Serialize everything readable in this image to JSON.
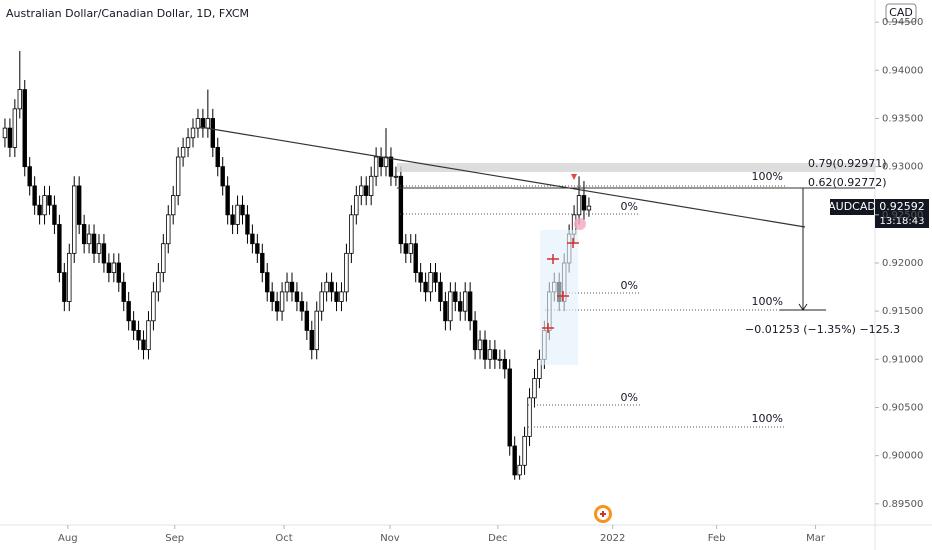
{
  "chart_data": {
    "type": "candlestick",
    "title": "Australian Dollar/Canadian Dollar, 1D, FXCM",
    "currency": "CAD",
    "symbol": "AUDCAD",
    "last_price_label": "0.92592",
    "countdown": "13:18:43",
    "up_color": "#ffffff",
    "down_color": "#000000",
    "xlim": [
      -1,
      175
    ],
    "xticks": [
      {
        "value": 12.7,
        "label": "Aug"
      },
      {
        "value": 34.3,
        "label": "Sep"
      },
      {
        "value": 56.4,
        "label": "Oct"
      },
      {
        "value": 77.8,
        "label": "Nov"
      },
      {
        "value": 99.6,
        "label": "Dec"
      },
      {
        "value": 122.8,
        "label": "2022"
      },
      {
        "value": 143.8,
        "label": "Feb"
      },
      {
        "value": 163.8,
        "label": "Mar"
      }
    ],
    "ylim": [
      0.8928,
      0.9473
    ],
    "yticks": [
      {
        "value": 0.895,
        "label": "0.89500"
      },
      {
        "value": 0.9,
        "label": "0.90000"
      },
      {
        "value": 0.905,
        "label": "0.90500"
      },
      {
        "value": 0.91,
        "label": "0.91000"
      },
      {
        "value": 0.915,
        "label": "0.91500"
      },
      {
        "value": 0.92,
        "label": "0.92000"
      },
      {
        "value": 0.925,
        "label": "0.92500"
      },
      {
        "value": 0.93,
        "label": "0.93000"
      },
      {
        "value": 0.935,
        "label": "0.93500"
      },
      {
        "value": 0.94,
        "label": "0.94000"
      },
      {
        "value": 0.945,
        "label": "0.94500"
      }
    ],
    "annotations": [
      "0.79(0.92971)",
      "0.62(0.92772)",
      "100%",
      "0%",
      "0%",
      "100%",
      "0%",
      "100%",
      "−0.01253 (−1.35%) −125.3"
    ],
    "open": [
      0.933,
      0.934,
      0.932,
      0.936,
      0.938,
      0.93,
      0.928,
      0.926,
      0.925,
      0.927,
      0.926,
      0.924,
      0.919,
      0.916,
      0.921,
      0.928,
      0.924,
      0.922,
      0.923,
      0.921,
      0.922,
      0.92,
      0.919,
      0.92,
      0.918,
      0.916,
      0.914,
      0.913,
      0.912,
      0.911,
      0.914,
      0.917,
      0.919,
      0.922,
      0.925,
      0.927,
      0.931,
      0.932,
      0.933,
      0.934,
      0.935,
      0.934,
      0.935,
      0.932,
      0.93,
      0.928,
      0.925,
      0.924,
      0.926,
      0.925,
      0.923,
      0.922,
      0.921,
      0.919,
      0.917,
      0.916,
      0.915,
      0.917,
      0.918,
      0.917,
      0.916,
      0.915,
      0.913,
      0.911,
      0.915,
      0.917,
      0.918,
      0.917,
      0.916,
      0.917,
      0.921,
      0.925,
      0.927,
      0.928,
      0.927,
      0.929,
      0.931,
      0.93,
      0.931,
      0.929,
      0.929,
      0.922,
      0.921,
      0.922,
      0.919,
      0.918,
      0.917,
      0.919,
      0.918,
      0.916,
      0.914,
      0.917,
      0.916,
      0.915,
      0.917,
      0.914,
      0.911,
      0.912,
      0.91,
      0.911,
      0.91,
      0.91,
      0.909,
      0.901,
      0.898,
      0.899,
      0.902,
      0.906,
      0.908,
      0.91,
      0.913,
      0.917,
      0.918,
      0.916,
      0.92,
      0.923,
      0.925,
      0.927,
      0.9255
    ],
    "high": [
      0.935,
      0.935,
      0.937,
      0.942,
      0.939,
      0.931,
      0.929,
      0.927,
      0.928,
      0.928,
      0.927,
      0.925,
      0.92,
      0.922,
      0.929,
      0.929,
      0.925,
      0.924,
      0.924,
      0.923,
      0.923,
      0.921,
      0.921,
      0.921,
      0.919,
      0.917,
      0.915,
      0.914,
      0.913,
      0.915,
      0.918,
      0.92,
      0.923,
      0.926,
      0.928,
      0.932,
      0.933,
      0.934,
      0.935,
      0.936,
      0.936,
      0.938,
      0.936,
      0.933,
      0.931,
      0.929,
      0.926,
      0.927,
      0.927,
      0.926,
      0.924,
      0.923,
      0.922,
      0.92,
      0.918,
      0.917,
      0.918,
      0.919,
      0.919,
      0.918,
      0.917,
      0.916,
      0.914,
      0.916,
      0.918,
      0.919,
      0.919,
      0.918,
      0.918,
      0.922,
      0.926,
      0.928,
      0.929,
      0.929,
      0.93,
      0.932,
      0.932,
      0.934,
      0.932,
      0.93,
      0.93,
      0.923,
      0.923,
      0.923,
      0.92,
      0.919,
      0.92,
      0.92,
      0.919,
      0.917,
      0.918,
      0.918,
      0.917,
      0.918,
      0.918,
      0.915,
      0.913,
      0.913,
      0.912,
      0.912,
      0.911,
      0.911,
      0.91,
      0.902,
      0.9,
      0.903,
      0.907,
      0.909,
      0.911,
      0.914,
      0.918,
      0.919,
      0.919,
      0.921,
      0.924,
      0.926,
      0.929,
      0.9285,
      0.9268
    ],
    "low": [
      0.932,
      0.931,
      0.931,
      0.935,
      0.929,
      0.927,
      0.925,
      0.924,
      0.924,
      0.925,
      0.923,
      0.918,
      0.915,
      0.915,
      0.92,
      0.923,
      0.921,
      0.921,
      0.92,
      0.92,
      0.919,
      0.918,
      0.918,
      0.917,
      0.915,
      0.913,
      0.912,
      0.911,
      0.91,
      0.91,
      0.913,
      0.916,
      0.918,
      0.921,
      0.924,
      0.926,
      0.93,
      0.931,
      0.932,
      0.933,
      0.933,
      0.933,
      0.931,
      0.929,
      0.927,
      0.924,
      0.923,
      0.923,
      0.924,
      0.922,
      0.921,
      0.92,
      0.918,
      0.916,
      0.915,
      0.914,
      0.914,
      0.916,
      0.916,
      0.915,
      0.914,
      0.912,
      0.91,
      0.91,
      0.914,
      0.916,
      0.916,
      0.915,
      0.915,
      0.916,
      0.92,
      0.924,
      0.926,
      0.926,
      0.926,
      0.928,
      0.929,
      0.929,
      0.928,
      0.928,
      0.921,
      0.92,
      0.92,
      0.918,
      0.917,
      0.916,
      0.916,
      0.917,
      0.915,
      0.913,
      0.913,
      0.915,
      0.914,
      0.914,
      0.913,
      0.91,
      0.91,
      0.909,
      0.909,
      0.909,
      0.909,
      0.908,
      0.9,
      0.8975,
      0.8975,
      0.898,
      0.901,
      0.905,
      0.907,
      0.909,
      0.912,
      0.916,
      0.915,
      0.915,
      0.919,
      0.922,
      0.924,
      0.9245,
      0.9248
    ],
    "close": [
      0.934,
      0.932,
      0.936,
      0.938,
      0.93,
      0.928,
      0.926,
      0.925,
      0.927,
      0.926,
      0.924,
      0.919,
      0.916,
      0.921,
      0.928,
      0.924,
      0.922,
      0.923,
      0.921,
      0.922,
      0.92,
      0.919,
      0.92,
      0.918,
      0.916,
      0.914,
      0.913,
      0.912,
      0.911,
      0.914,
      0.917,
      0.919,
      0.922,
      0.925,
      0.927,
      0.931,
      0.932,
      0.933,
      0.934,
      0.935,
      0.934,
      0.935,
      0.932,
      0.93,
      0.928,
      0.925,
      0.924,
      0.926,
      0.925,
      0.923,
      0.922,
      0.921,
      0.919,
      0.917,
      0.916,
      0.915,
      0.917,
      0.918,
      0.917,
      0.916,
      0.915,
      0.913,
      0.911,
      0.915,
      0.917,
      0.918,
      0.917,
      0.916,
      0.917,
      0.921,
      0.925,
      0.927,
      0.928,
      0.927,
      0.929,
      0.931,
      0.93,
      0.931,
      0.929,
      0.929,
      0.922,
      0.921,
      0.922,
      0.919,
      0.918,
      0.917,
      0.919,
      0.918,
      0.916,
      0.914,
      0.917,
      0.916,
      0.915,
      0.917,
      0.914,
      0.911,
      0.912,
      0.91,
      0.911,
      0.91,
      0.91,
      0.909,
      0.901,
      0.898,
      0.899,
      0.902,
      0.906,
      0.908,
      0.91,
      0.913,
      0.917,
      0.918,
      0.916,
      0.92,
      0.923,
      0.925,
      0.927,
      0.9255,
      0.9259
    ]
  }
}
